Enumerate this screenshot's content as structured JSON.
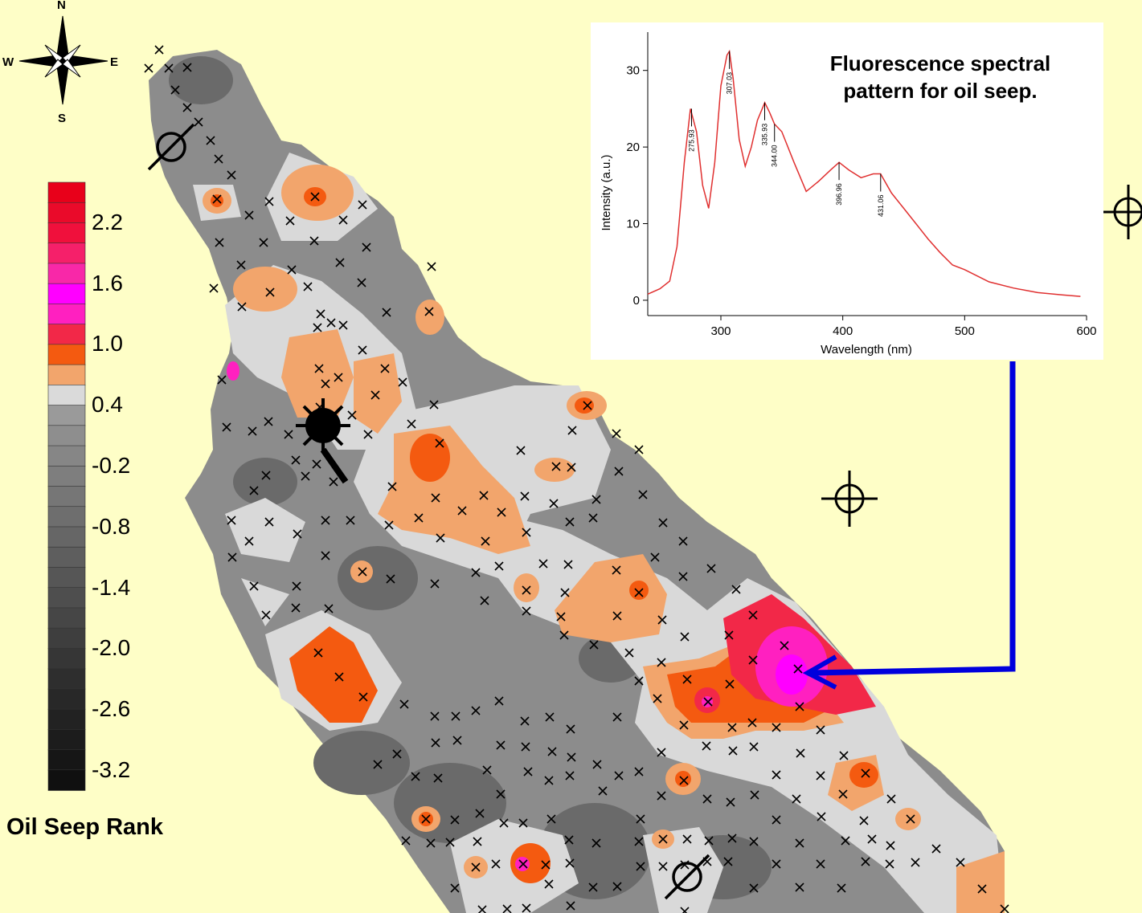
{
  "compass": {
    "n": "N",
    "s": "S",
    "e": "E",
    "w": "W"
  },
  "legend": {
    "title": "Oil Seep Rank",
    "labels": [
      "2.2",
      "1.6",
      "1.0",
      "0.4",
      "-0.2",
      "-0.8",
      "-1.4",
      "-2.0",
      "-2.6",
      "-3.2"
    ],
    "colors": [
      "#e8001a",
      "#ea0a2a",
      "#f0103c",
      "#f5206a",
      "#f828a8",
      "#ff00ff",
      "#ff20c0",
      "#f22848",
      "#f45a10",
      "#f2a56c",
      "#dadada",
      "#9a9a9a",
      "#8e8e8e",
      "#868686",
      "#7e7e7e",
      "#767676",
      "#6e6e6e",
      "#666666",
      "#5e5e5e",
      "#565656",
      "#4e4e4e",
      "#464646",
      "#3e3e3e",
      "#363636",
      "#2e2e2e",
      "#282828",
      "#222222",
      "#1c1c1c",
      "#161616",
      "#101010"
    ]
  },
  "colors": {
    "background": "#fefec7",
    "map_gray_dark": "#6a6a6a",
    "map_gray": "#8c8c8c",
    "map_light": "#d9d9d9",
    "map_orange": "#f2a56c",
    "map_red_orange": "#f45a10",
    "map_red": "#f22848",
    "map_magenta": "#ff20c0",
    "pointer_arrow": "#0000dd",
    "spectrum_line": "#e03030"
  },
  "inset": {
    "title_line1": "Fluorescence spectral",
    "title_line2": "pattern for oil seep."
  },
  "chart_data": {
    "type": "line",
    "title": "Fluorescence spectral pattern for oil seep.",
    "xlabel": "Wavelength (nm)",
    "ylabel": "Intensity (a.u.)",
    "xlim": [
      240,
      600
    ],
    "ylim": [
      -2,
      35
    ],
    "xticks": [
      "300",
      "400",
      "500",
      "600"
    ],
    "yticks": [
      "0",
      "10",
      "20",
      "30"
    ],
    "x": [
      240,
      250,
      258,
      264,
      270,
      275,
      280,
      285,
      290,
      295,
      300,
      305,
      307,
      310,
      315,
      320,
      325,
      330,
      336,
      340,
      344,
      350,
      360,
      370,
      380,
      390,
      397,
      405,
      415,
      425,
      431,
      440,
      450,
      460,
      470,
      480,
      490,
      500,
      520,
      540,
      560,
      580,
      595
    ],
    "y": [
      0.8,
      1.5,
      2.5,
      7,
      18,
      25,
      22,
      15,
      12,
      18,
      28,
      32,
      32.5,
      29,
      21,
      17.5,
      20,
      23.5,
      25.8,
      24.5,
      23,
      22,
      18,
      14.2,
      15.5,
      17,
      18,
      17,
      16,
      16.5,
      16.5,
      14,
      12,
      10,
      8,
      6.2,
      4.6,
      4,
      2.4,
      1.6,
      1,
      0.7,
      0.5
    ],
    "peak_labels": [
      "275.93",
      "307.03",
      "335.93",
      "344.00",
      "396.96",
      "431.06"
    ],
    "peak_x": [
      275.93,
      307.03,
      335.93,
      344.0,
      396.96,
      431.06
    ],
    "peak_y": [
      25,
      32.5,
      25.8,
      23,
      18,
      16.5
    ]
  }
}
